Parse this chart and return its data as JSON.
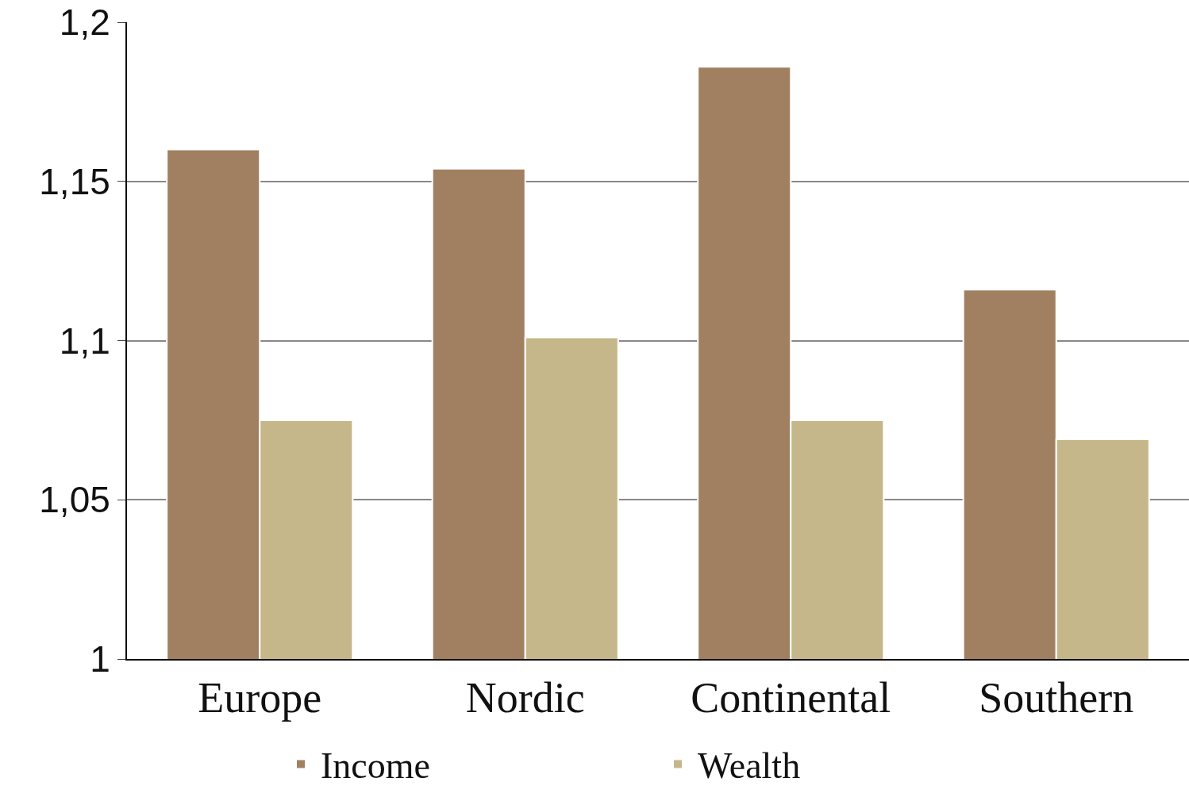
{
  "chart_data": {
    "type": "bar",
    "categories": [
      "Europe",
      "Nordic",
      "Continental",
      "Southern"
    ],
    "series": [
      {
        "name": "Income",
        "color": "#a08060",
        "values": [
          1.16,
          1.154,
          1.186,
          1.116
        ]
      },
      {
        "name": "Wealth",
        "color": "#c6b78a",
        "values": [
          1.075,
          1.101,
          1.075,
          1.069
        ]
      }
    ],
    "ylim": [
      1,
      1.2
    ],
    "yticks": [
      1,
      {
        "value": 1.05,
        "label": "1,05"
      },
      {
        "value": 1.1,
        "label": "1,1"
      },
      {
        "value": 1.15,
        "label": "1,15"
      },
      {
        "value": 1.2,
        "label": "1,2"
      }
    ],
    "grid": "y",
    "legend": "bottom"
  }
}
